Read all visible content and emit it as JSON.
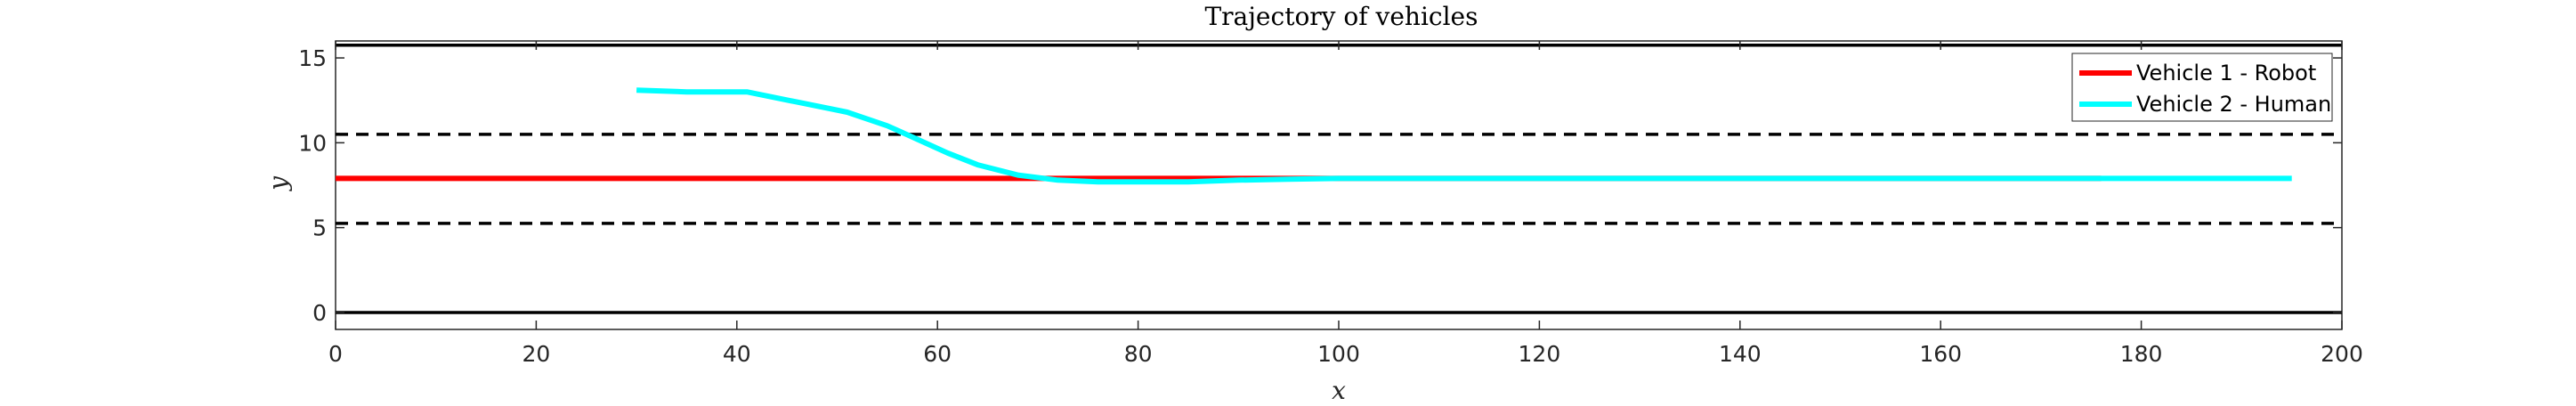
{
  "chart_data": {
    "type": "line",
    "title": "Trajectory of vehicles",
    "xlabel": "x",
    "ylabel": "y",
    "xlim": [
      0,
      200
    ],
    "ylim": [
      -1,
      16
    ],
    "xticks": [
      0,
      20,
      40,
      60,
      80,
      100,
      120,
      140,
      160,
      180,
      200
    ],
    "yticks": [
      0,
      5,
      10,
      15
    ],
    "grid": false,
    "legend_position": "top-right",
    "reference_lines": [
      {
        "y": 0,
        "style": "solid",
        "color": "#000000"
      },
      {
        "y": 5.25,
        "style": "dashed",
        "color": "#000000"
      },
      {
        "y": 10.5,
        "style": "dashed",
        "color": "#000000"
      },
      {
        "y": 15.75,
        "style": "solid",
        "color": "#000000"
      }
    ],
    "series": [
      {
        "name": "Vehicle 1 - Robot",
        "color": "#ff0000",
        "x": [
          0,
          20,
          40,
          60,
          80,
          100,
          120,
          140,
          160,
          176
        ],
        "y": [
          7.9,
          7.9,
          7.9,
          7.9,
          7.9,
          7.9,
          7.9,
          7.9,
          7.9,
          7.9
        ]
      },
      {
        "name": "Vehicle 2 - Human",
        "color": "#00ffff",
        "x": [
          30,
          35,
          41,
          46,
          51,
          55,
          58,
          61,
          64,
          68,
          72,
          76,
          80,
          85,
          90,
          95,
          100,
          120,
          140,
          160,
          180,
          195
        ],
        "y": [
          13.1,
          13.0,
          13.0,
          12.4,
          11.8,
          11.0,
          10.2,
          9.4,
          8.7,
          8.1,
          7.8,
          7.7,
          7.7,
          7.7,
          7.8,
          7.85,
          7.9,
          7.9,
          7.9,
          7.9,
          7.9,
          7.9
        ]
      }
    ]
  }
}
